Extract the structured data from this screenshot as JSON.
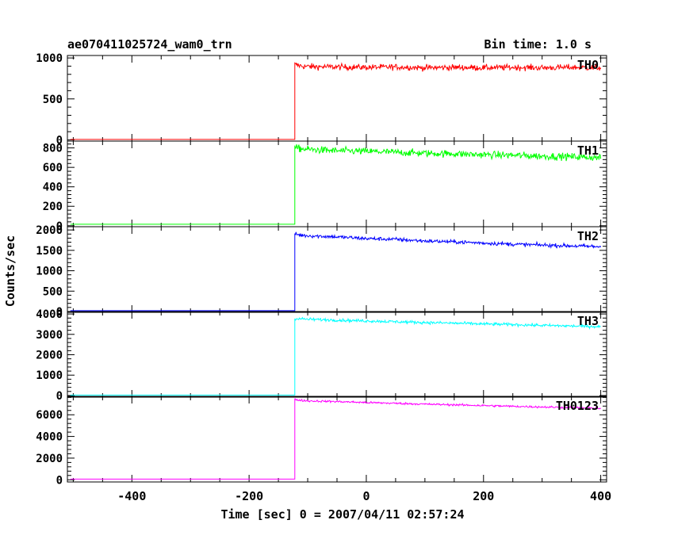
{
  "chart_data": {
    "type": "line",
    "title": "ae070411025724_wam0_trn",
    "subtitle": "Bin time: 1.0 s",
    "xlabel": "Time [sec] 0 = 2007/04/11 02:57:24",
    "ylabel": "Counts/sec",
    "xlim": [
      -510,
      410
    ],
    "x_ticks": [
      -400,
      -200,
      0,
      200,
      400
    ],
    "trigger_time": -122,
    "grid": false,
    "panels": [
      {
        "name": "TH0",
        "color": "#ff0000",
        "ylim": [
          -15,
          1030
        ],
        "y_ticks": [
          0,
          500,
          1000
        ],
        "baseline": 5,
        "x": [
          -122,
          -110,
          -100,
          -50,
          0,
          50,
          100,
          150,
          200,
          250,
          300,
          350,
          400
        ],
        "values": [
          920,
          900,
          895,
          890,
          885,
          890,
          880,
          885,
          880,
          885,
          880,
          885,
          880
        ],
        "noise": 35
      },
      {
        "name": "TH1",
        "color": "#00ff00",
        "ylim": [
          -10,
          870
        ],
        "y_ticks": [
          0,
          200,
          400,
          600,
          800
        ],
        "baseline": 15,
        "x": [
          -122,
          -110,
          -100,
          -50,
          0,
          50,
          100,
          150,
          200,
          250,
          300,
          350,
          400
        ],
        "values": [
          800,
          790,
          785,
          770,
          765,
          755,
          745,
          740,
          730,
          725,
          715,
          710,
          700
        ],
        "noise": 35
      },
      {
        "name": "TH2",
        "color": "#0000ff",
        "ylim": [
          -20,
          2080
        ],
        "y_ticks": [
          0,
          500,
          1000,
          1500,
          2000
        ],
        "baseline": 20,
        "x": [
          -122,
          -110,
          -100,
          -50,
          0,
          50,
          100,
          150,
          200,
          250,
          300,
          350,
          400
        ],
        "values": [
          1900,
          1870,
          1860,
          1830,
          1790,
          1770,
          1730,
          1710,
          1680,
          1650,
          1630,
          1610,
          1590
        ],
        "noise": 45
      },
      {
        "name": "TH3",
        "color": "#00ffff",
        "ylim": [
          -80,
          4120
        ],
        "y_ticks": [
          0,
          1000,
          2000,
          3000,
          4000
        ],
        "baseline": 20,
        "x": [
          -122,
          -110,
          -100,
          -50,
          0,
          50,
          100,
          150,
          200,
          250,
          300,
          350,
          400
        ],
        "values": [
          3780,
          3760,
          3740,
          3700,
          3660,
          3620,
          3580,
          3550,
          3510,
          3480,
          3440,
          3410,
          3380
        ],
        "noise": 70
      },
      {
        "name": "TH0123",
        "color": "#ff00ff",
        "ylim": [
          -200,
          7700
        ],
        "y_ticks": [
          0,
          2000,
          4000,
          6000
        ],
        "baseline": 60,
        "x": [
          -122,
          -110,
          -100,
          -50,
          0,
          50,
          100,
          150,
          200,
          250,
          300,
          350,
          400
        ],
        "values": [
          7400,
          7330,
          7280,
          7220,
          7130,
          7060,
          6980,
          6920,
          6850,
          6780,
          6720,
          6670,
          6600
        ],
        "noise": 90
      }
    ]
  }
}
